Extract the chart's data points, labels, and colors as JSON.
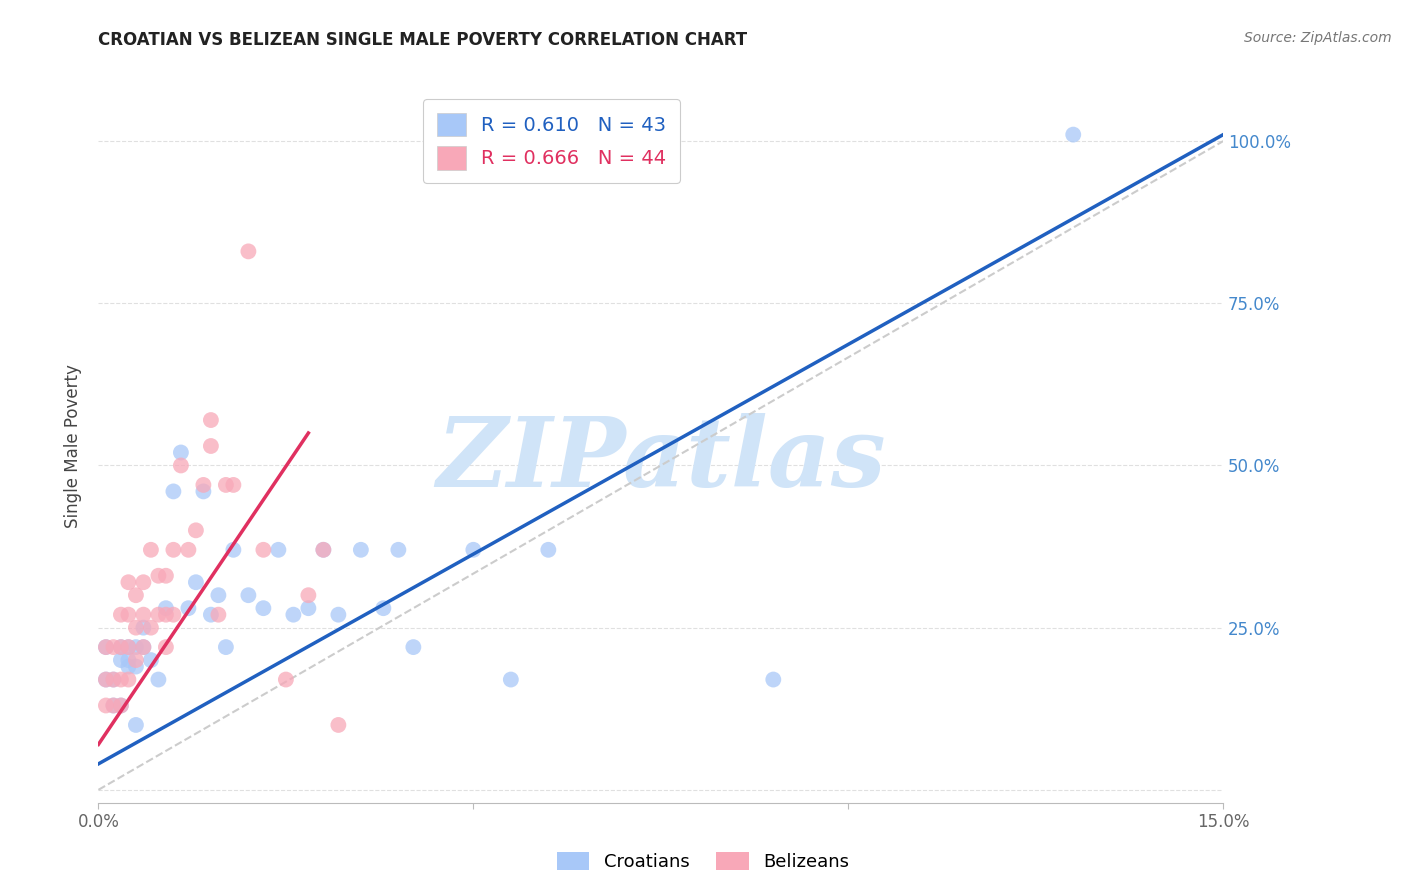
{
  "title": "CROATIAN VS BELIZEAN SINGLE MALE POVERTY CORRELATION CHART",
  "source": "Source: ZipAtlas.com",
  "ylabel": "Single Male Poverty",
  "xlim": [
    0.0,
    0.15
  ],
  "ylim": [
    -0.02,
    1.08
  ],
  "croatians_R": 0.61,
  "croatians_N": 43,
  "belizeans_R": 0.666,
  "belizeans_N": 44,
  "croatian_color": "#A8C8F8",
  "belizean_color": "#F8A8B8",
  "croatian_line_color": "#2060C0",
  "belizean_line_color": "#E03060",
  "diagonal_color": "#CCCCCC",
  "watermark_color": "#D0E4F8",
  "background_color": "#FFFFFF",
  "grid_color": "#E0E0E0",
  "croatians_x": [
    0.001,
    0.001,
    0.002,
    0.002,
    0.003,
    0.003,
    0.003,
    0.004,
    0.004,
    0.004,
    0.005,
    0.005,
    0.005,
    0.006,
    0.006,
    0.007,
    0.008,
    0.009,
    0.01,
    0.011,
    0.012,
    0.013,
    0.014,
    0.015,
    0.016,
    0.017,
    0.018,
    0.02,
    0.022,
    0.024,
    0.026,
    0.028,
    0.03,
    0.032,
    0.035,
    0.038,
    0.04,
    0.042,
    0.05,
    0.055,
    0.06,
    0.09,
    0.13
  ],
  "croatians_y": [
    0.17,
    0.22,
    0.17,
    0.13,
    0.2,
    0.22,
    0.13,
    0.19,
    0.22,
    0.2,
    0.22,
    0.19,
    0.1,
    0.22,
    0.25,
    0.2,
    0.17,
    0.28,
    0.46,
    0.52,
    0.28,
    0.32,
    0.46,
    0.27,
    0.3,
    0.22,
    0.37,
    0.3,
    0.28,
    0.37,
    0.27,
    0.28,
    0.37,
    0.27,
    0.37,
    0.28,
    0.37,
    0.22,
    0.37,
    0.17,
    0.37,
    0.17,
    1.01
  ],
  "belizeans_x": [
    0.001,
    0.001,
    0.001,
    0.002,
    0.002,
    0.002,
    0.003,
    0.003,
    0.003,
    0.003,
    0.004,
    0.004,
    0.004,
    0.004,
    0.005,
    0.005,
    0.005,
    0.006,
    0.006,
    0.006,
    0.007,
    0.007,
    0.008,
    0.008,
    0.009,
    0.009,
    0.009,
    0.01,
    0.01,
    0.011,
    0.012,
    0.013,
    0.014,
    0.015,
    0.015,
    0.016,
    0.017,
    0.018,
    0.02,
    0.022,
    0.025,
    0.028,
    0.03,
    0.032
  ],
  "belizeans_y": [
    0.13,
    0.17,
    0.22,
    0.13,
    0.17,
    0.22,
    0.13,
    0.17,
    0.22,
    0.27,
    0.17,
    0.22,
    0.27,
    0.32,
    0.2,
    0.25,
    0.3,
    0.22,
    0.27,
    0.32,
    0.25,
    0.37,
    0.27,
    0.33,
    0.27,
    0.33,
    0.22,
    0.27,
    0.37,
    0.5,
    0.37,
    0.4,
    0.47,
    0.53,
    0.57,
    0.27,
    0.47,
    0.47,
    0.83,
    0.37,
    0.17,
    0.3,
    0.37,
    0.1
  ],
  "croatian_line_x": [
    0.0,
    0.15
  ],
  "croatian_line_y": [
    0.04,
    1.01
  ],
  "belizean_line_x": [
    0.0,
    0.028
  ],
  "belizean_line_y": [
    0.07,
    0.55
  ]
}
